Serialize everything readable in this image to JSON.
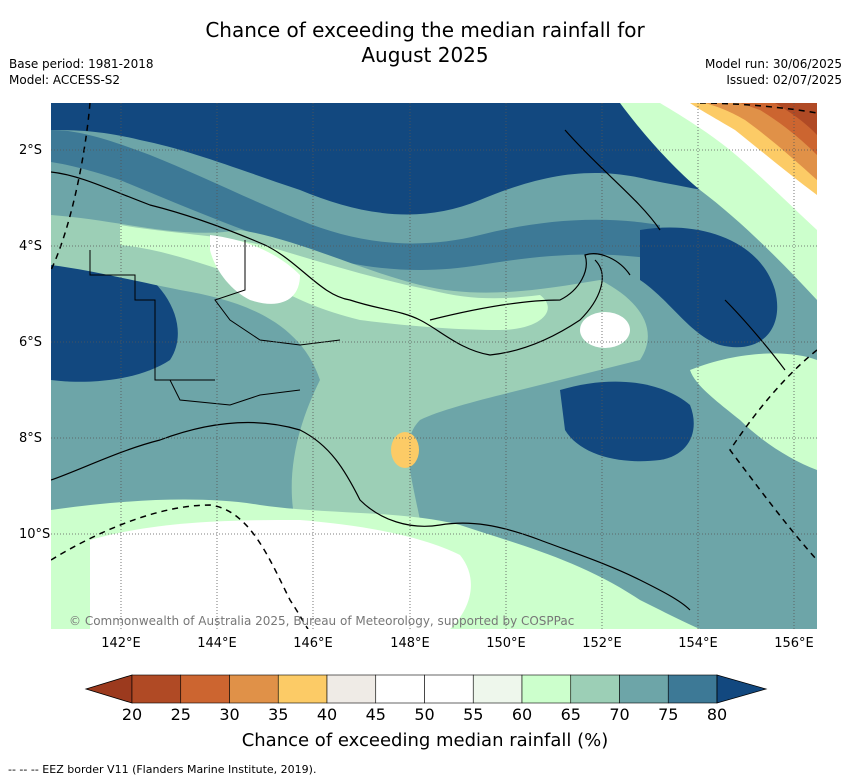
{
  "title_line1": "Chance of exceeding the median rainfall for",
  "title_line2": "August 2025",
  "meta_left": {
    "base_period": "Base period: 1981-2018",
    "model": "Model: ACCESS-S2"
  },
  "meta_right": {
    "model_run": "Model run: 30/06/2025",
    "issued": "Issued: 02/07/2025"
  },
  "lat_labels": [
    "2°S",
    "4°S",
    "6°S",
    "8°S",
    "10°S"
  ],
  "lon_labels": [
    "142°E",
    "144°E",
    "146°E",
    "148°E",
    "150°E",
    "152°E",
    "154°E",
    "156°E"
  ],
  "credit": "© Commonwealth of Australia 2025, Bureau of Meteorology, supported by COSPPac",
  "colorbar": {
    "ticks": [
      "20",
      "25",
      "30",
      "35",
      "40",
      "45",
      "50",
      "55",
      "60",
      "65",
      "70",
      "75",
      "80"
    ],
    "colors": [
      "#b04a25",
      "#cc6530",
      "#e09148",
      "#fccb66",
      "#efebe6",
      "#ffffff",
      "#ffffff",
      "#eef7ec",
      "#ccffcc",
      "#9ccfb6",
      "#6da5a8",
      "#3d7996",
      "#12487f"
    ],
    "label": "Chance of exceeding median rainfall (%)"
  },
  "footer": "--  --  -- EEZ border V11 (Flanders Marine Institute, 2019)."
}
